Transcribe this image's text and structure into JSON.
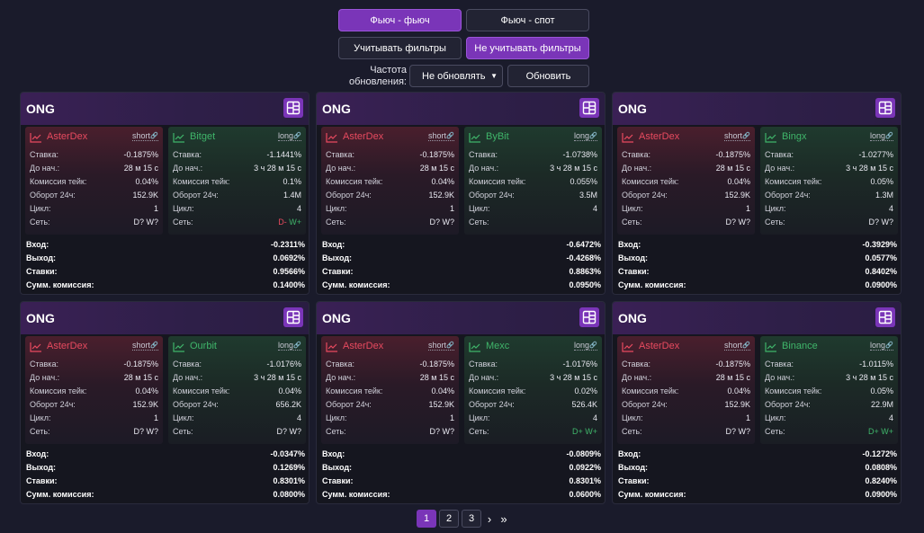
{
  "modes": {
    "futures_futures": "Фьюч - фьюч",
    "futures_spot": "Фьюч - спот"
  },
  "filters": {
    "apply": "Учитывать фильтры",
    "ignore": "Не учитывать фильтры"
  },
  "update": {
    "label": "Частота обновления:",
    "select_value": "Не обновлять",
    "refresh_button": "Обновить"
  },
  "labels": {
    "rate": "Ставка:",
    "until": "До нач.:",
    "fee": "Комиссия тейк:",
    "turnover": "Оборот 24ч:",
    "cycle": "Цикл:",
    "network": "Сеть:",
    "entry": "Вход:",
    "exit": "Выход:",
    "rates": "Ставки:",
    "total_fee": "Сумм. комиссия:"
  },
  "colors": {
    "accent": "#7a35b8",
    "short_red": "#e84a5f",
    "long_green": "#3fb56a"
  },
  "cards": [
    {
      "title": "ONG",
      "left": {
        "name": "AsterDex",
        "side": "short",
        "rate": "-0.1875%",
        "until": "28 м 15 с",
        "fee": "0.04%",
        "turnover": "152.9K",
        "cycle": "1",
        "net_d": "D?",
        "net_w": "W?"
      },
      "right": {
        "name": "Bitget",
        "side": "long",
        "rate": "-1.1441%",
        "until": "3 ч 28 м 15 с",
        "fee": "0.1%",
        "turnover": "1.4M",
        "cycle": "4",
        "net_d": "D-",
        "net_w": "W+"
      },
      "entry": "-0.2311%",
      "exit": "0.0692%",
      "rates": "0.9566%",
      "total_fee": "0.1400%"
    },
    {
      "title": "ONG",
      "left": {
        "name": "AsterDex",
        "side": "short",
        "rate": "-0.1875%",
        "until": "28 м 15 с",
        "fee": "0.04%",
        "turnover": "152.9K",
        "cycle": "1",
        "net_d": "D?",
        "net_w": "W?"
      },
      "right": {
        "name": "ByBit",
        "side": "long",
        "rate": "-1.0738%",
        "until": "3 ч 28 м 15 с",
        "fee": "0.055%",
        "turnover": "3.5M",
        "cycle": "4",
        "net_d": "",
        "net_w": ""
      },
      "entry": "-0.6472%",
      "exit": "-0.4268%",
      "rates": "0.8863%",
      "total_fee": "0.0950%"
    },
    {
      "title": "ONG",
      "left": {
        "name": "AsterDex",
        "side": "short",
        "rate": "-0.1875%",
        "until": "28 м 15 с",
        "fee": "0.04%",
        "turnover": "152.9K",
        "cycle": "1",
        "net_d": "D?",
        "net_w": "W?"
      },
      "right": {
        "name": "Bingx",
        "side": "long",
        "rate": "-1.0277%",
        "until": "3 ч 28 м 15 с",
        "fee": "0.05%",
        "turnover": "1.3M",
        "cycle": "4",
        "net_d": "D?",
        "net_w": "W?"
      },
      "entry": "-0.3929%",
      "exit": "0.0577%",
      "rates": "0.8402%",
      "total_fee": "0.0900%"
    },
    {
      "title": "ONG",
      "left": {
        "name": "AsterDex",
        "side": "short",
        "rate": "-0.1875%",
        "until": "28 м 15 с",
        "fee": "0.04%",
        "turnover": "152.9K",
        "cycle": "1",
        "net_d": "D?",
        "net_w": "W?"
      },
      "right": {
        "name": "Ourbit",
        "side": "long",
        "rate": "-1.0176%",
        "until": "3 ч 28 м 15 с",
        "fee": "0.04%",
        "turnover": "656.2K",
        "cycle": "4",
        "net_d": "D?",
        "net_w": "W?"
      },
      "entry": "-0.0347%",
      "exit": "0.1269%",
      "rates": "0.8301%",
      "total_fee": "0.0800%"
    },
    {
      "title": "ONG",
      "left": {
        "name": "AsterDex",
        "side": "short",
        "rate": "-0.1875%",
        "until": "28 м 15 с",
        "fee": "0.04%",
        "turnover": "152.9K",
        "cycle": "1",
        "net_d": "D?",
        "net_w": "W?"
      },
      "right": {
        "name": "Mexc",
        "side": "long",
        "rate": "-1.0176%",
        "until": "3 ч 28 м 15 с",
        "fee": "0.02%",
        "turnover": "526.4K",
        "cycle": "4",
        "net_d": "D+",
        "net_w": "W+"
      },
      "entry": "-0.0809%",
      "exit": "0.0922%",
      "rates": "0.8301%",
      "total_fee": "0.0600%"
    },
    {
      "title": "ONG",
      "left": {
        "name": "AsterDex",
        "side": "short",
        "rate": "-0.1875%",
        "until": "28 м 15 с",
        "fee": "0.04%",
        "turnover": "152.9K",
        "cycle": "1",
        "net_d": "D?",
        "net_w": "W?"
      },
      "right": {
        "name": "Binance",
        "side": "long",
        "rate": "-1.0115%",
        "until": "3 ч 28 м 15 с",
        "fee": "0.05%",
        "turnover": "22.9M",
        "cycle": "4",
        "net_d": "D+",
        "net_w": "W+"
      },
      "entry": "-0.1272%",
      "exit": "0.0808%",
      "rates": "0.8240%",
      "total_fee": "0.0900%"
    }
  ],
  "pagination": {
    "pages": [
      "1",
      "2",
      "3"
    ],
    "current": "1",
    "next": "›",
    "last": "»"
  }
}
